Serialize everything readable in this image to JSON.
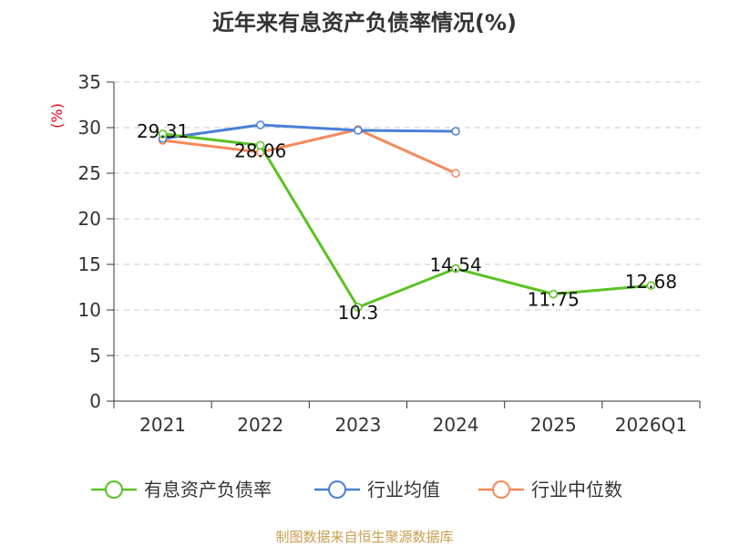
{
  "chart_data": {
    "type": "line",
    "title": "近年来有息资产负债率情况(%)",
    "ylabel": "(%)",
    "xlabel": "",
    "categories": [
      "2021",
      "2022",
      "2023",
      "2024",
      "2025",
      "2026Q1"
    ],
    "ylim": [
      0,
      35
    ],
    "yticks": [
      0,
      5,
      10,
      15,
      20,
      25,
      30,
      35
    ],
    "grid": true,
    "legend_position": "bottom",
    "series": [
      {
        "name": "有息资产负债率",
        "color": "#5ac222",
        "values": [
          29.31,
          28.06,
          10.3,
          14.54,
          11.75,
          12.68
        ],
        "labels": [
          "29.31",
          "28.06",
          "10.3",
          "14.54",
          "11.75",
          "12.68"
        ]
      },
      {
        "name": "行业均值",
        "color": "#4a7fd8",
        "values": [
          28.8,
          30.3,
          29.7,
          29.6,
          null,
          null
        ]
      },
      {
        "name": "行业中位数",
        "color": "#f5895a",
        "values": [
          28.6,
          27.3,
          29.8,
          25.0,
          null,
          null
        ]
      }
    ]
  },
  "source": "制图数据来自恒生聚源数据库"
}
